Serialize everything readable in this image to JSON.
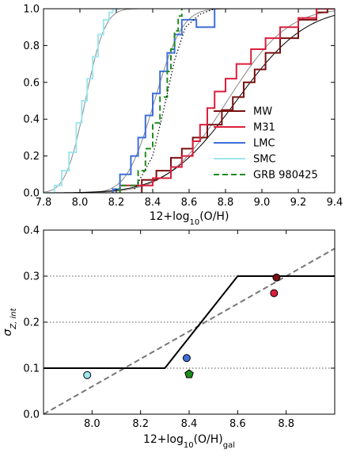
{
  "chart_data": [
    {
      "type": "line",
      "subtype": "cumulative-distribution-step",
      "xlabel_main": "12+log",
      "xlabel_sub": "10",
      "xlabel_rest": "(O/H)",
      "ylabel": "",
      "xlim": [
        7.8,
        9.4
      ],
      "ylim": [
        0.0,
        1.0
      ],
      "xticks": [
        "7.8",
        "8.0",
        "8.2",
        "8.4",
        "8.6",
        "8.8",
        "9.0",
        "9.2",
        "9.4"
      ],
      "yticks": [
        "0.0",
        "0.2",
        "0.4",
        "0.6",
        "0.8",
        "1.0"
      ],
      "legend_position": "lower-right",
      "series": [
        {
          "name": "MW",
          "color": "#7a1010",
          "dash": "solid",
          "points": [
            [
              8.34,
              0.0
            ],
            [
              8.34,
              0.07
            ],
            [
              8.42,
              0.07
            ],
            [
              8.42,
              0.12
            ],
            [
              8.5,
              0.12
            ],
            [
              8.5,
              0.19
            ],
            [
              8.56,
              0.19
            ],
            [
              8.56,
              0.24
            ],
            [
              8.62,
              0.24
            ],
            [
              8.62,
              0.3
            ],
            [
              8.7,
              0.3
            ],
            [
              8.7,
              0.37
            ],
            [
              8.78,
              0.37
            ],
            [
              8.78,
              0.45
            ],
            [
              8.84,
              0.45
            ],
            [
              8.84,
              0.52
            ],
            [
              8.9,
              0.52
            ],
            [
              8.9,
              0.6
            ],
            [
              8.96,
              0.6
            ],
            [
              8.96,
              0.67
            ],
            [
              9.02,
              0.67
            ],
            [
              9.02,
              0.76
            ],
            [
              9.1,
              0.76
            ],
            [
              9.1,
              0.84
            ],
            [
              9.2,
              0.84
            ],
            [
              9.2,
              0.94
            ],
            [
              9.3,
              0.94
            ],
            [
              9.3,
              0.98
            ],
            [
              9.36,
              0.98
            ],
            [
              9.36,
              1.0
            ],
            [
              9.4,
              1.0
            ]
          ]
        },
        {
          "name": "M31",
          "color": "#dc1e3c",
          "dash": "solid",
          "points": [
            [
              8.22,
              0.0
            ],
            [
              8.22,
              0.04
            ],
            [
              8.4,
              0.04
            ],
            [
              8.4,
              0.08
            ],
            [
              8.5,
              0.08
            ],
            [
              8.5,
              0.14
            ],
            [
              8.56,
              0.14
            ],
            [
              8.56,
              0.2
            ],
            [
              8.62,
              0.2
            ],
            [
              8.62,
              0.28
            ],
            [
              8.66,
              0.28
            ],
            [
              8.66,
              0.37
            ],
            [
              8.7,
              0.37
            ],
            [
              8.7,
              0.46
            ],
            [
              8.74,
              0.46
            ],
            [
              8.74,
              0.55
            ],
            [
              8.8,
              0.55
            ],
            [
              8.8,
              0.62
            ],
            [
              8.86,
              0.62
            ],
            [
              8.86,
              0.7
            ],
            [
              8.94,
              0.7
            ],
            [
              8.94,
              0.78
            ],
            [
              9.02,
              0.78
            ],
            [
              9.02,
              0.84
            ],
            [
              9.1,
              0.84
            ],
            [
              9.1,
              0.9
            ],
            [
              9.2,
              0.9
            ],
            [
              9.2,
              0.95
            ],
            [
              9.3,
              0.95
            ],
            [
              9.3,
              1.0
            ],
            [
              9.4,
              1.0
            ]
          ]
        },
        {
          "name": "LMC",
          "color": "#3e6fd8",
          "dash": "solid",
          "points": [
            [
              8.18,
              0.0
            ],
            [
              8.18,
              0.02
            ],
            [
              8.22,
              0.02
            ],
            [
              8.22,
              0.1
            ],
            [
              8.28,
              0.1
            ],
            [
              8.28,
              0.2
            ],
            [
              8.32,
              0.2
            ],
            [
              8.32,
              0.3
            ],
            [
              8.36,
              0.3
            ],
            [
              8.36,
              0.42
            ],
            [
              8.4,
              0.42
            ],
            [
              8.4,
              0.54
            ],
            [
              8.44,
              0.54
            ],
            [
              8.44,
              0.66
            ],
            [
              8.48,
              0.66
            ],
            [
              8.48,
              0.76
            ],
            [
              8.52,
              0.76
            ],
            [
              8.52,
              0.86
            ],
            [
              8.56,
              0.86
            ],
            [
              8.56,
              0.94
            ],
            [
              8.64,
              0.94
            ],
            [
              8.64,
              0.9
            ],
            [
              8.74,
              0.9
            ],
            [
              8.74,
              1.0
            ]
          ]
        },
        {
          "name": "SMC",
          "color": "#9fe6ee",
          "dash": "solid",
          "points": [
            [
              7.8,
              0.0
            ],
            [
              7.86,
              0.0
            ],
            [
              7.86,
              0.04
            ],
            [
              7.9,
              0.04
            ],
            [
              7.9,
              0.12
            ],
            [
              7.94,
              0.12
            ],
            [
              7.94,
              0.22
            ],
            [
              7.98,
              0.22
            ],
            [
              7.98,
              0.38
            ],
            [
              8.01,
              0.38
            ],
            [
              8.01,
              0.5
            ],
            [
              8.04,
              0.5
            ],
            [
              8.04,
              0.62
            ],
            [
              8.07,
              0.62
            ],
            [
              8.07,
              0.74
            ],
            [
              8.1,
              0.74
            ],
            [
              8.1,
              0.86
            ],
            [
              8.13,
              0.86
            ],
            [
              8.13,
              0.94
            ],
            [
              8.16,
              0.94
            ],
            [
              8.16,
              0.98
            ],
            [
              8.18,
              0.98
            ],
            [
              8.18,
              1.0
            ],
            [
              8.22,
              1.0
            ]
          ]
        },
        {
          "name": "GRB 980425",
          "color": "#1e8c1e",
          "dash": "dashed",
          "points": [
            [
              8.22,
              0.0
            ],
            [
              8.22,
              0.04
            ],
            [
              8.32,
              0.04
            ],
            [
              8.32,
              0.12
            ],
            [
              8.36,
              0.12
            ],
            [
              8.36,
              0.24
            ],
            [
              8.4,
              0.24
            ],
            [
              8.4,
              0.38
            ],
            [
              8.44,
              0.38
            ],
            [
              8.44,
              0.52
            ],
            [
              8.48,
              0.52
            ],
            [
              8.48,
              0.66
            ],
            [
              8.5,
              0.66
            ],
            [
              8.5,
              0.78
            ],
            [
              8.52,
              0.78
            ],
            [
              8.52,
              0.88
            ],
            [
              8.54,
              0.88
            ],
            [
              8.54,
              0.96
            ],
            [
              8.56,
              0.96
            ],
            [
              8.56,
              1.0
            ]
          ]
        },
        {
          "name": "",
          "color": "#000000",
          "dash": "dotted",
          "points": [
            [
              8.3,
              0.02
            ],
            [
              8.4,
              0.2
            ],
            [
              8.46,
              0.45
            ],
            [
              8.52,
              0.72
            ],
            [
              8.58,
              0.9
            ],
            [
              8.66,
              0.97
            ],
            [
              8.74,
              1.0
            ]
          ]
        }
      ],
      "fits": [
        {
          "color": "#888888",
          "mu": 8.03,
          "sigma": 0.085,
          "range": [
            7.8,
            8.32
          ]
        },
        {
          "color": "#888888",
          "mu": 8.41,
          "sigma": 0.12,
          "range": [
            8.0,
            8.9
          ]
        },
        {
          "color": "#888888",
          "mu": 8.81,
          "sigma": 0.26,
          "range": [
            8.1,
            9.4
          ]
        },
        {
          "color": "#000000",
          "mu": 8.86,
          "sigma": 0.3,
          "range": [
            7.8,
            9.4
          ]
        }
      ]
    },
    {
      "type": "scatter",
      "xlabel_main": "12+log",
      "xlabel_sub": "10",
      "xlabel_rest": "(O/H)",
      "xlabel_sub2": "gal",
      "ylabel_main": "σ",
      "ylabel_sub": "Z, int",
      "xlim": [
        7.8,
        9.0
      ],
      "ylim": [
        0.0,
        0.4
      ],
      "xticks": [
        "8.0",
        "8.2",
        "8.4",
        "8.6",
        "8.8"
      ],
      "yticks": [
        "0.0",
        "0.1",
        "0.2",
        "0.3",
        "0.4"
      ],
      "hlines": [
        0.1,
        0.2,
        0.3
      ],
      "hline_style": "dotted",
      "piecewise_line": {
        "color": "#000000",
        "points": [
          [
            7.8,
            0.1
          ],
          [
            8.3,
            0.1
          ],
          [
            8.6,
            0.3
          ],
          [
            9.0,
            0.3
          ]
        ]
      },
      "dashed_line": {
        "color": "#777777",
        "points": [
          [
            7.8,
            0.0
          ],
          [
            9.0,
            0.36
          ]
        ]
      },
      "points": [
        {
          "x": 7.98,
          "y": 0.085,
          "color": "#9fe6ee",
          "marker": "circle"
        },
        {
          "x": 8.39,
          "y": 0.122,
          "color": "#3e6fd8",
          "marker": "circle"
        },
        {
          "x": 8.4,
          "y": 0.087,
          "color": "#1e8c1e",
          "marker": "pentagon"
        },
        {
          "x": 8.75,
          "y": 0.263,
          "color": "#dc1e3c",
          "marker": "circle"
        },
        {
          "x": 8.76,
          "y": 0.297,
          "color": "#7a1010",
          "marker": "circle"
        }
      ]
    }
  ]
}
